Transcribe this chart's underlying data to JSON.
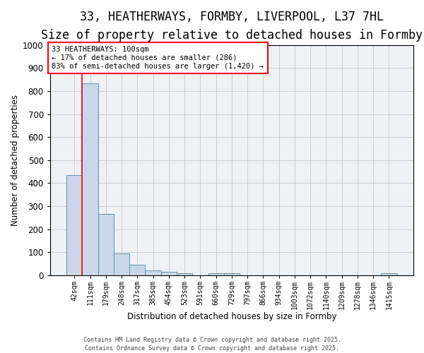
{
  "title1": "33, HEATHERWAYS, FORMBY, LIVERPOOL, L37 7HL",
  "title2": "Size of property relative to detached houses in Formby",
  "xlabel": "Distribution of detached houses by size in Formby",
  "ylabel": "Number of detached properties",
  "bar_labels": [
    "42sqm",
    "111sqm",
    "179sqm",
    "248sqm",
    "317sqm",
    "385sqm",
    "454sqm",
    "523sqm",
    "591sqm",
    "660sqm",
    "729sqm",
    "797sqm",
    "866sqm",
    "934sqm",
    "1003sqm",
    "1072sqm",
    "1140sqm",
    "1209sqm",
    "1278sqm",
    "1346sqm",
    "1415sqm"
  ],
  "bar_heights": [
    435,
    835,
    265,
    95,
    45,
    20,
    15,
    10,
    0,
    10,
    10,
    0,
    0,
    0,
    0,
    0,
    0,
    0,
    0,
    0,
    10
  ],
  "bar_color": "#c8d8e8",
  "bar_edge_color": "#6090b0",
  "vline_color": "red",
  "ylim": [
    0,
    1000
  ],
  "yticks": [
    0,
    100,
    200,
    300,
    400,
    500,
    600,
    700,
    800,
    900,
    1000
  ],
  "annotation_title": "33 HEATHERWAYS: 100sqm",
  "annotation_line1": "← 17% of detached houses are smaller (286)",
  "annotation_line2": "83% of semi-detached houses are larger (1,420) →",
  "annotation_box_color": "red",
  "footer1": "Contains HM Land Registry data © Crown copyright and database right 2025.",
  "footer2": "Contains Ordnance Survey data © Crown copyright and database right 2025.",
  "bg_color": "#eef2f6",
  "grid_color": "#c0c8d4",
  "title1_fontsize": 12,
  "title2_fontsize": 10,
  "bar_width": 1.0
}
